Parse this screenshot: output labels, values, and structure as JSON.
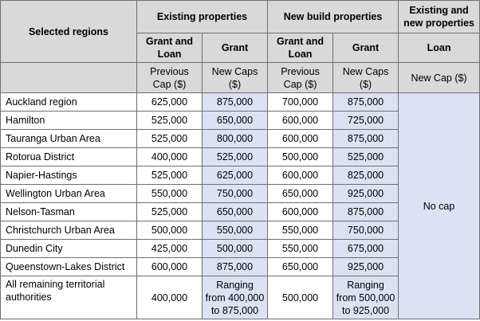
{
  "header": {
    "regions_label": "Selected regions",
    "existing_label": "Existing properties",
    "newbuild_label": "New build properties",
    "existing_new_label": "Existing and new properties",
    "col_grant_loan_1": "Grant and Loan",
    "col_grant_1": "Grant",
    "col_grant_loan_2": "Grant and Loan",
    "col_grant_2": "Grant",
    "col_loan": "Loan",
    "sub_prev_cap_1": "Previous Cap ($)",
    "sub_new_caps_1": "New Caps ($)",
    "sub_prev_cap_2": "Previous Cap ($)",
    "sub_new_caps_2": "New Caps ($)",
    "sub_new_cap_loan": "New Cap ($)"
  },
  "loan_value": "No cap",
  "rows": [
    {
      "region": "Auckland region",
      "ex_prev": "625,000",
      "ex_new": "875,000",
      "nb_prev": "700,000",
      "nb_new": "875,000"
    },
    {
      "region": "Hamilton",
      "ex_prev": "525,000",
      "ex_new": "650,000",
      "nb_prev": "600,000",
      "nb_new": "725,000"
    },
    {
      "region": "Tauranga Urban Area",
      "ex_prev": "525,000",
      "ex_new": "800,000",
      "nb_prev": "600,000",
      "nb_new": "875,000"
    },
    {
      "region": "Rotorua District",
      "ex_prev": "400,000",
      "ex_new": "525,000",
      "nb_prev": "500,000",
      "nb_new": "525,000"
    },
    {
      "region": "Napier-Hastings",
      "ex_prev": "525,000",
      "ex_new": "625,000",
      "nb_prev": "600,000",
      "nb_new": "825,000"
    },
    {
      "region": "Wellington Urban Area",
      "ex_prev": "550,000",
      "ex_new": "750,000",
      "nb_prev": "650,000",
      "nb_new": "925,000"
    },
    {
      "region": "Nelson-Tasman",
      "ex_prev": "525,000",
      "ex_new": "650,000",
      "nb_prev": "600,000",
      "nb_new": "875,000"
    },
    {
      "region": "Christchurch Urban Area",
      "ex_prev": "500,000",
      "ex_new": "550,000",
      "nb_prev": "550,000",
      "nb_new": "750,000"
    },
    {
      "region": "Dunedin City",
      "ex_prev": "425,000",
      "ex_new": "500,000",
      "nb_prev": "550,000",
      "nb_new": "675,000"
    },
    {
      "region": "Queenstown-Lakes District",
      "ex_prev": "600,000",
      "ex_new": "875,000",
      "nb_prev": "650,000",
      "nb_new": "925,000"
    },
    {
      "region": "All remaining territorial authorities",
      "ex_prev": "400,000",
      "ex_new": "Ranging from 400,000 to 875,000",
      "nb_prev": "500,000",
      "nb_new": "Ranging from 500,000 to 925,000"
    }
  ]
}
